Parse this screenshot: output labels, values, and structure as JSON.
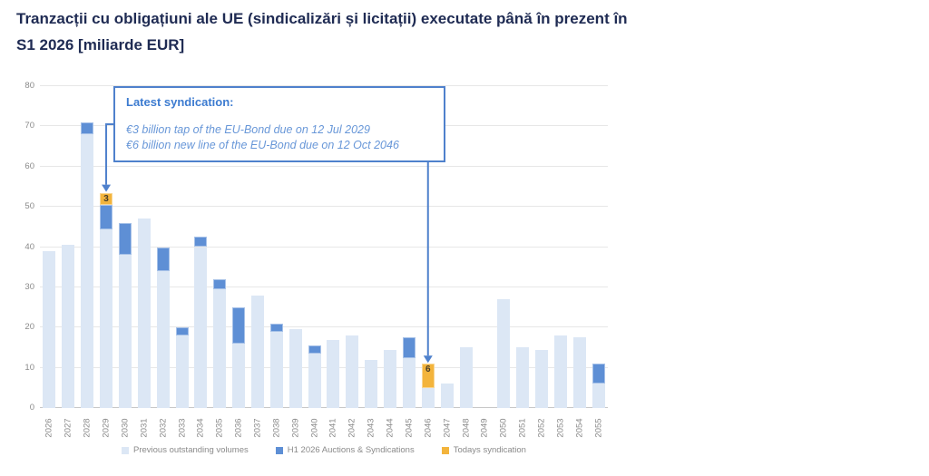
{
  "title": {
    "line1": "Tranzacții cu obligațiuni ale UE (sindicalizări și licitații) executate până în prezent în",
    "line2": "S1 2026 [miliarde EUR]"
  },
  "annotation": {
    "heading": "Latest syndication:",
    "line1": "€3 billion tap of the EU-Bond due on 12 Jul 2029",
    "line2": "€6 billion new line of the EU-Bond due on 12 Oct 2046",
    "arrow_target_years": [
      "2029",
      "2046"
    ]
  },
  "legend": [
    {
      "label": "Previous outstanding volumes",
      "color": "#dce7f5"
    },
    {
      "label": "H1 2026 Auctions & Syndications",
      "color": "#5e8fd5"
    },
    {
      "label": "Todays syndication",
      "color": "#f3b43c"
    }
  ],
  "colors": {
    "title_text": "#1f2b53",
    "axis_text": "#8a8a8a",
    "gridline": "#e7e7e7",
    "axis_line": "#c8c8c8",
    "annotation_border": "#4f81cc",
    "annotation_heading_text": "#3c7bd0",
    "annotation_body_text": "#6897d8",
    "bar_label_text": "#463c28",
    "previous_volumes_bar": "#dce7f5",
    "h1_auctions_bar": "#5e8fd5",
    "todays_syndication_bar": "#f3b43c"
  },
  "chart_data": {
    "type": "bar",
    "stacked": true,
    "title": "Tranzacții cu obligațiuni ale UE (sindicalizări și licitații) executate până în prezent în S1 2026 [miliarde EUR]",
    "xlabel": "",
    "ylabel": "",
    "ylim": [
      0,
      80
    ],
    "ytick_step": 10,
    "grid": true,
    "legend_position": "bottom",
    "categories": [
      "2026",
      "2027",
      "2028",
      "2029",
      "2030",
      "2031",
      "2032",
      "2033",
      "2034",
      "2035",
      "2036",
      "2037",
      "2038",
      "2039",
      "2040",
      "2041",
      "2042",
      "2043",
      "2044",
      "2045",
      "2046",
      "2047",
      "2048",
      "2049",
      "2050",
      "2051",
      "2052",
      "2053",
      "2054",
      "2055"
    ],
    "series": [
      {
        "name": "Previous outstanding volumes",
        "color": "#dce7f5",
        "values": [
          39,
          40.5,
          68,
          44.5,
          38,
          47,
          34,
          18,
          40,
          29.5,
          16,
          28,
          19,
          19.5,
          13.5,
          17,
          18,
          12,
          14.5,
          12.5,
          5,
          6,
          15,
          0,
          27,
          15,
          14.5,
          18,
          17.5,
          6
        ]
      },
      {
        "name": "H1 2026 Auctions & Syndications",
        "color": "#5e8fd5",
        "values": [
          0,
          0,
          3,
          6,
          8,
          0,
          6,
          2,
          2.5,
          2.5,
          9,
          0,
          2,
          0,
          2,
          0,
          0,
          0,
          0,
          5,
          0,
          0,
          0,
          0,
          0,
          0,
          0,
          0,
          0,
          5
        ]
      },
      {
        "name": "Todays syndication",
        "color": "#f3b43c",
        "show_data_labels": true,
        "values": [
          0,
          0,
          0,
          3,
          0,
          0,
          0,
          0,
          0,
          0,
          0,
          0,
          0,
          0,
          0,
          0,
          0,
          0,
          0,
          0,
          6,
          0,
          0,
          0,
          0,
          0,
          0,
          0,
          0,
          0
        ]
      }
    ],
    "bar_value_labels": [
      {
        "year": "2029",
        "text": "3"
      },
      {
        "year": "2046",
        "text": "6"
      }
    ]
  }
}
